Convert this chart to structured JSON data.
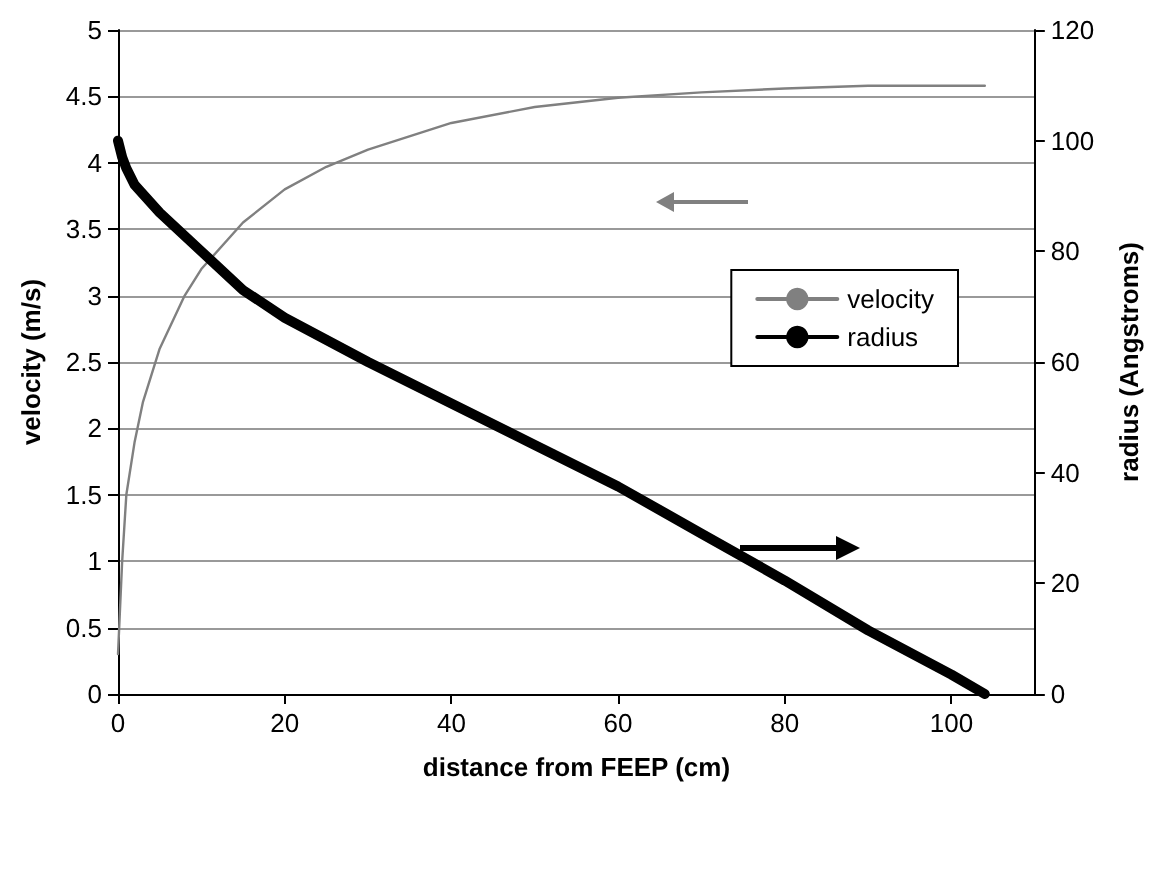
{
  "chart_data": {
    "type": "line",
    "xlabel": "distance from FEEP (cm)",
    "ylabel": "velocity (m/s)",
    "y2label": "radius (Angstroms)",
    "xlim": [
      0,
      110
    ],
    "xticks": [
      0,
      20,
      40,
      60,
      80,
      100
    ],
    "ylim": [
      0,
      5
    ],
    "yticks": [
      0,
      0.5,
      1,
      1.5,
      2,
      2.5,
      3,
      3.5,
      4,
      4.5,
      5
    ],
    "y2lim": [
      0,
      120
    ],
    "y2ticks": [
      0,
      20,
      40,
      60,
      80,
      100,
      120
    ],
    "grid": "y",
    "legend": "right",
    "marker": "none",
    "line_style": "solid",
    "series": [
      {
        "name": "velocity",
        "color": "#808080",
        "x": [
          0,
          0.5,
          1,
          2,
          3,
          5,
          8,
          10,
          15,
          20,
          25,
          30,
          40,
          50,
          60,
          70,
          80,
          90,
          104
        ],
        "values": [
          0.3,
          1.0,
          1.5,
          1.9,
          2.2,
          2.6,
          3.0,
          3.2,
          3.55,
          3.8,
          3.97,
          4.1,
          4.3,
          4.42,
          4.49,
          4.53,
          4.56,
          4.58,
          4.58
        ]
      },
      {
        "name": "radius",
        "color": "#000000",
        "axis": "y2",
        "x": [
          0,
          0.5,
          1,
          2,
          5,
          10,
          15,
          20,
          30,
          40,
          50,
          60,
          70,
          80,
          90,
          100,
          104
        ],
        "values": [
          100,
          97,
          95,
          92,
          87,
          80,
          73,
          68,
          60,
          52.5,
          45,
          37.5,
          29,
          20.5,
          11.5,
          3.5,
          0
        ]
      }
    ]
  }
}
